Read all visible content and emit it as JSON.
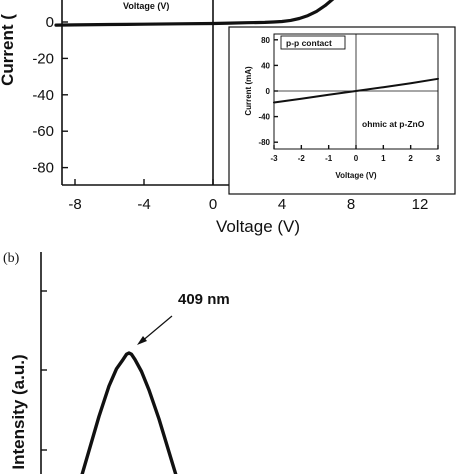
{
  "chart_data": [
    {
      "id": "a",
      "type": "line",
      "xlabel": "Voltage (V)",
      "ylabel": "Current (",
      "xticks": [
        "-8",
        "-4",
        "0",
        "4",
        "8",
        "12"
      ],
      "yticks": [
        "0",
        "-20",
        "-40",
        "-60",
        "-80"
      ],
      "xlim": [
        -10,
        14
      ],
      "ylim_visible": [
        -85,
        5
      ],
      "clipped_top_text": "Voltage (V)",
      "series": [
        {
          "x": [
            -9.1,
            -8,
            -6,
            -4,
            -2,
            0,
            1,
            2,
            3,
            3.5,
            4,
            4.5,
            5,
            5.5,
            6,
            6.5,
            7.0
          ],
          "y": [
            -1.7,
            -1.6,
            -1.4,
            -1.2,
            -1.0,
            -0.8,
            -0.6,
            -0.4,
            -0.2,
            0.0,
            0.3,
            0.9,
            1.9,
            3.5,
            5.8,
            9,
            13
          ]
        }
      ],
      "inset": {
        "type": "line",
        "xlabel": "Voltage (V)",
        "ylabel": "Current (mA)",
        "xticks": [
          "-3",
          "-2",
          "-1",
          "0",
          "1",
          "2",
          "3"
        ],
        "yticks": [
          "80",
          "40",
          "0",
          "-40",
          "-80"
        ],
        "xlim": [
          -3,
          3
        ],
        "ylim": [
          -90,
          90
        ],
        "legend_box": "p-p contact",
        "annotation": "ohmic at p-ZnO",
        "series": [
          {
            "x": [
              -3,
              -2,
              -1,
              0,
              1,
              2,
              3
            ],
            "y": [
              -18,
              -12,
              -6,
              0,
              6,
              12,
              19
            ]
          }
        ]
      }
    },
    {
      "id": "b",
      "type": "line",
      "panel_label": "(b)",
      "ylabel": "Intensity (a.u.)",
      "annotation": "409 nm",
      "series": [
        {
          "x": [
            -1.0,
            -0.8,
            -0.6,
            -0.4,
            -0.25,
            -0.12,
            -0.05,
            0,
            0.05,
            0.12,
            0.25,
            0.4,
            0.6,
            0.8,
            1.0
          ],
          "y": [
            0.0,
            0.26,
            0.52,
            0.75,
            0.88,
            0.95,
            0.99,
            1.0,
            0.99,
            0.95,
            0.86,
            0.72,
            0.5,
            0.25,
            0.0
          ]
        }
      ]
    }
  ]
}
